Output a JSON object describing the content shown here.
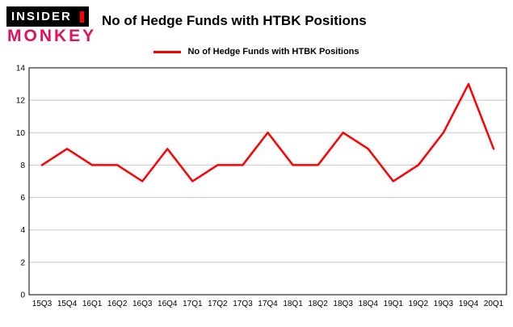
{
  "logo": {
    "line1": "INSIDER",
    "line2": "MONKEY"
  },
  "header": {
    "title": "No of Hedge Funds with HTBK Positions"
  },
  "colors": {
    "line": "#ff0000",
    "grid": "#c8c8c8",
    "axis": "#000000",
    "monkey_pink": "#e0115f"
  },
  "chart_data": {
    "type": "line",
    "title": "No of Hedge Funds with HTBK Positions",
    "categories": [
      "15Q3",
      "15Q4",
      "16Q1",
      "16Q2",
      "16Q3",
      "16Q4",
      "17Q1",
      "17Q2",
      "17Q3",
      "17Q4",
      "18Q1",
      "18Q2",
      "18Q3",
      "18Q4",
      "19Q1",
      "19Q2",
      "19Q3",
      "19Q4",
      "20Q1"
    ],
    "series": [
      {
        "name": "No of Hedge Funds with HTBK Positions",
        "values": [
          8,
          9,
          8,
          8,
          7,
          9,
          7,
          8,
          8,
          10,
          8,
          8,
          10,
          9,
          7,
          8,
          10,
          13,
          9
        ]
      }
    ],
    "xlabel": "",
    "ylabel": "",
    "ylim": [
      0,
      14
    ],
    "ytick_step": 2,
    "grid": true,
    "legend_position": "top",
    "line_color": "#ff0000"
  }
}
